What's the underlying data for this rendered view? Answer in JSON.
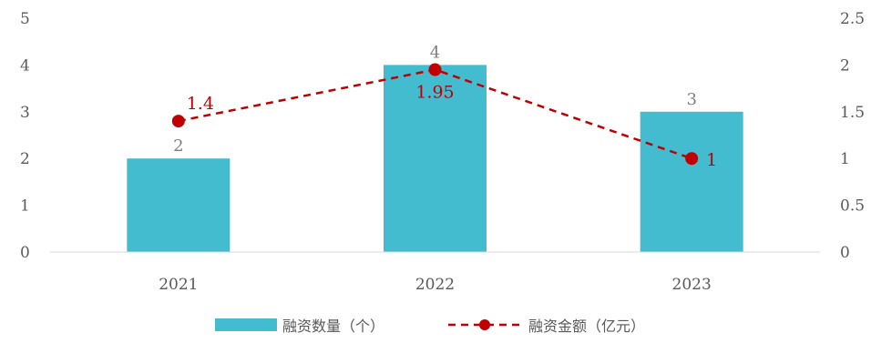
{
  "chart_data": {
    "type": "bar",
    "categories": [
      "2021",
      "2022",
      "2023"
    ],
    "series": [
      {
        "name": "融资数量（个）",
        "type": "bar",
        "axis": "left",
        "color": "#44bccf",
        "values": [
          2,
          4,
          3
        ],
        "labels": [
          "2",
          "4",
          "3"
        ]
      },
      {
        "name": "融资金额（亿元）",
        "type": "line",
        "axis": "right",
        "color": "#c00000",
        "line_style": "dashed",
        "marker": "circle",
        "values": [
          1.4,
          1.95,
          1.0
        ],
        "labels": [
          "1.4",
          "1.95",
          "1"
        ]
      }
    ],
    "y_left": {
      "ylim": [
        0,
        5
      ],
      "ticks": [
        "0",
        "1",
        "2",
        "3",
        "4",
        "5"
      ]
    },
    "y_right": {
      "ylim": [
        0,
        2.5
      ],
      "ticks": [
        "0",
        "0.5",
        "1",
        "1.5",
        "2",
        "2.5"
      ]
    },
    "title": "",
    "xlabel": "",
    "ylabel": "",
    "grid": false,
    "legend_position": "bottom"
  }
}
